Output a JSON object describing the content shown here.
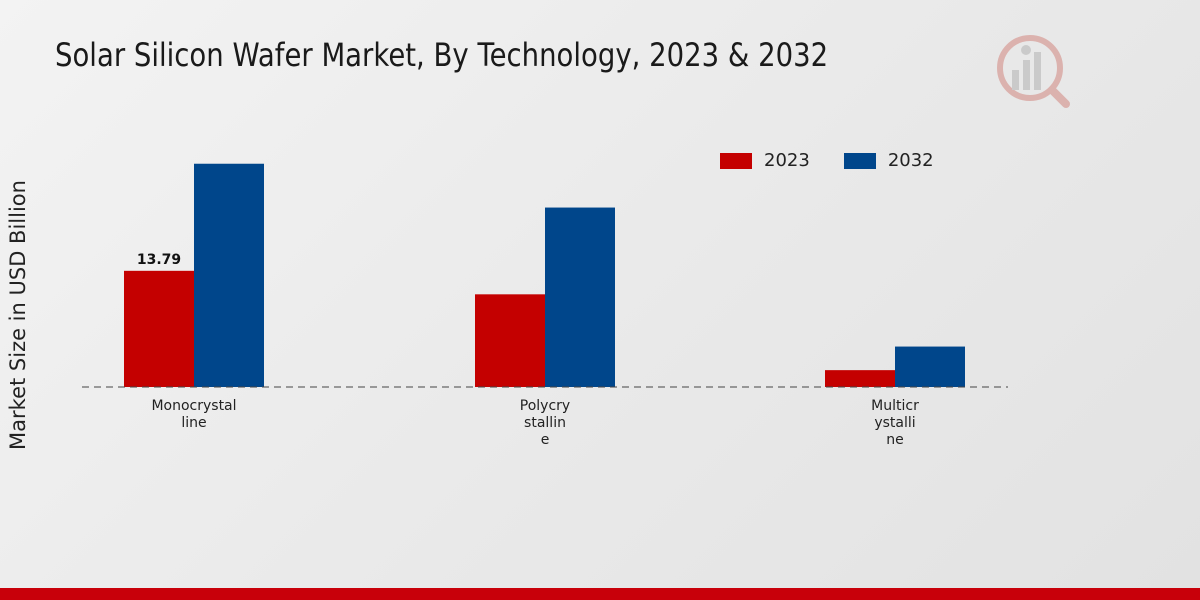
{
  "chart_data": {
    "type": "bar",
    "title": "Solar Silicon Wafer Market, By Technology, 2023 & 2032",
    "ylabel": "Market Size in USD Billion",
    "xlabel": "",
    "categories": [
      [
        "Monocrystal",
        "line"
      ],
      [
        "Polycry",
        "stallin",
        "e"
      ],
      [
        "Multicr",
        "ystalli",
        "ne"
      ]
    ],
    "series": [
      {
        "name": "2023",
        "color": "#c40000",
        "values": [
          13.79,
          11.0,
          2.0
        ]
      },
      {
        "name": "2032",
        "color": "#00468b",
        "values": [
          26.5,
          21.3,
          4.8
        ]
      }
    ],
    "data_labels": [
      {
        "series": 0,
        "category": 0,
        "text": "13.79"
      }
    ],
    "ylim": [
      0,
      40
    ],
    "legend_position": "top-right"
  },
  "colors": {
    "accent_strip": "#c8000a",
    "baseline": "#444444"
  }
}
